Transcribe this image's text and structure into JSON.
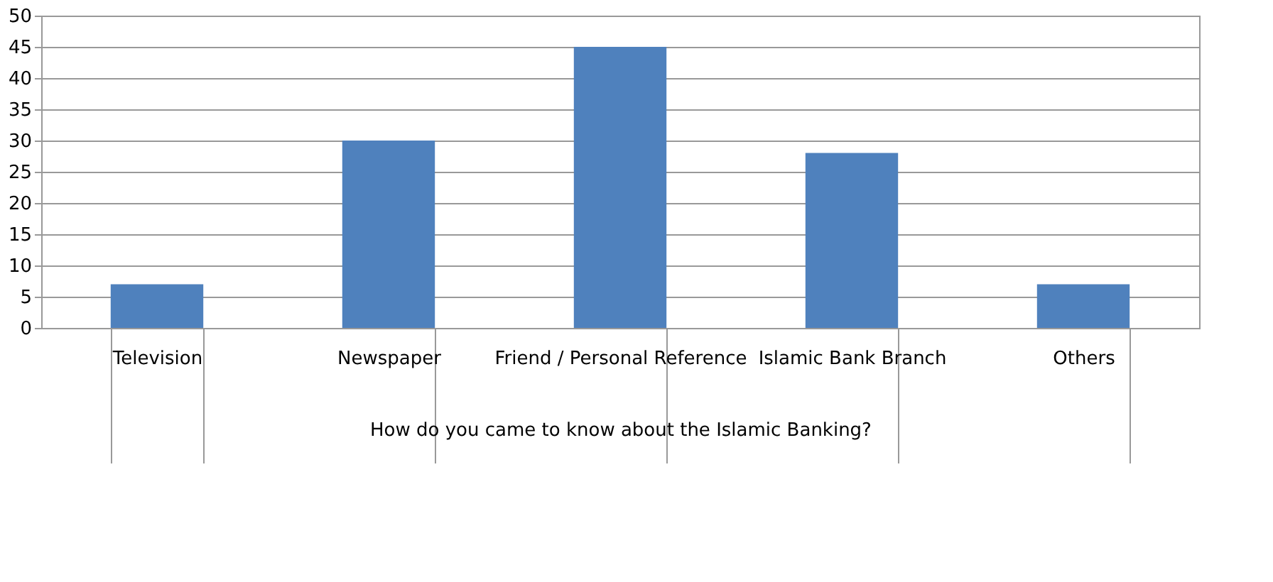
{
  "chart_data": {
    "type": "bar",
    "xlabel": "How do you came to know about the Islamic Banking?",
    "categories": [
      "Television",
      "Newspaper",
      "Friend  / Personal Reference",
      "Islamic Bank Branch",
      "Others"
    ],
    "values": [
      7,
      30,
      45,
      28,
      7
    ],
    "color": "#4f81bd",
    "ylim": [
      0,
      50
    ],
    "yticks": [
      0,
      5,
      10,
      15,
      20,
      25,
      30,
      35,
      40,
      45,
      50
    ],
    "grid": "y"
  }
}
